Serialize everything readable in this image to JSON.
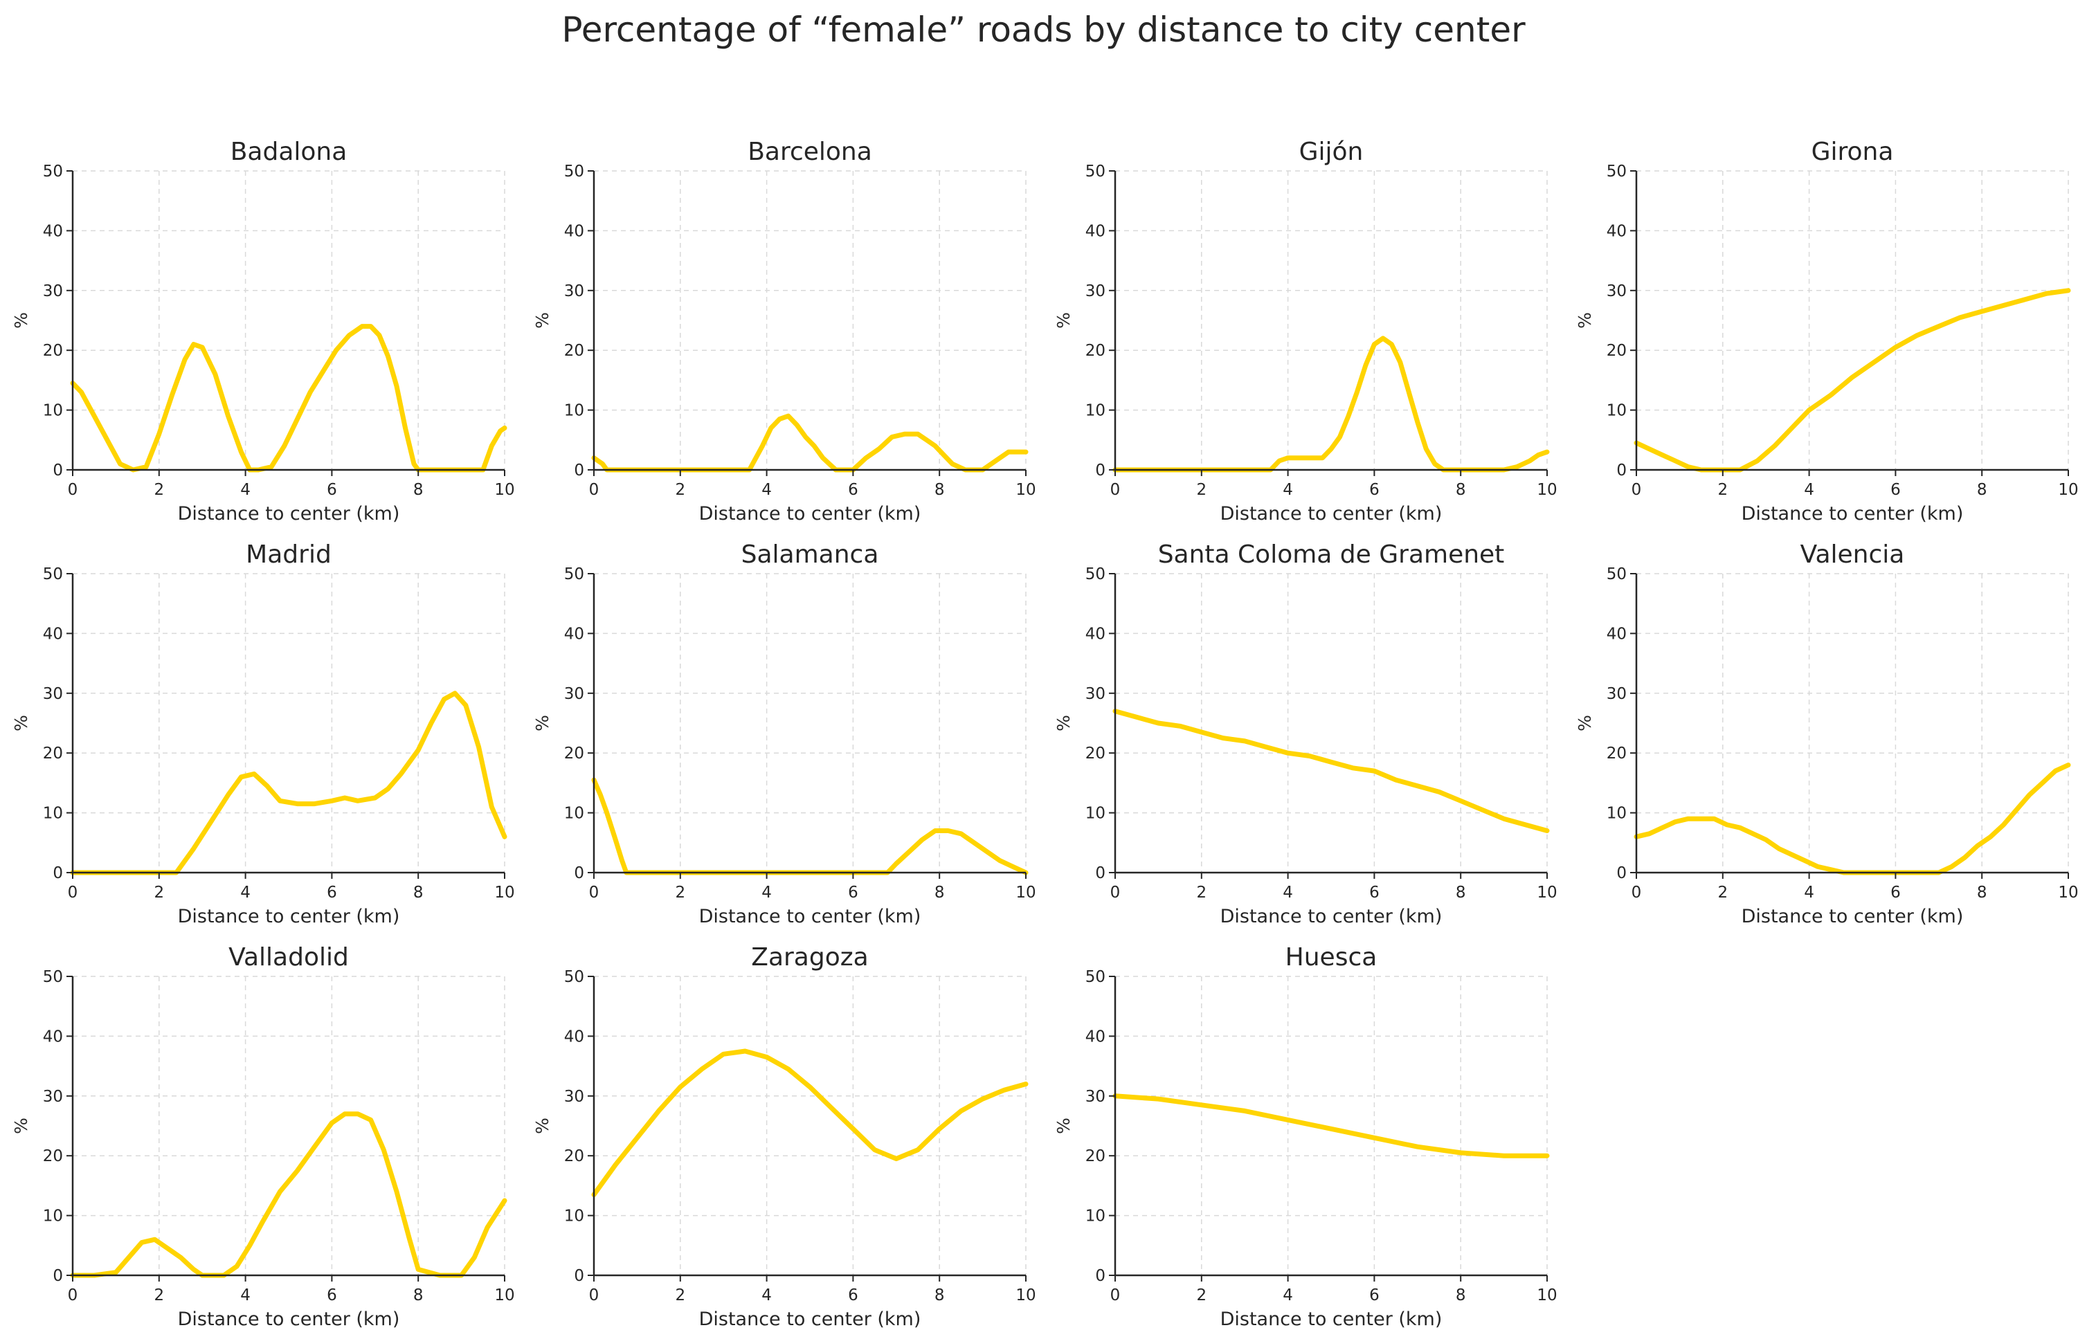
{
  "title": "Percentage of “female” roads by distance to city center",
  "colors": {
    "series": "#FFD400",
    "axis": "#262626",
    "grid": "#d9d9d9"
  },
  "chart_data": [
    {
      "type": "line",
      "title": "Badalona",
      "xlabel": "Distance to center (km)",
      "ylabel": "%",
      "xlim": [
        0,
        10
      ],
      "ylim": [
        0,
        50
      ],
      "xticks": [
        0,
        2,
        4,
        6,
        8,
        10
      ],
      "yticks": [
        0,
        10,
        20,
        30,
        40,
        50
      ],
      "grid": true,
      "x": [
        0,
        0.2,
        0.5,
        0.8,
        1.1,
        1.4,
        1.7,
        2.0,
        2.3,
        2.6,
        2.8,
        3.0,
        3.3,
        3.6,
        3.9,
        4.1,
        4.3,
        4.6,
        4.9,
        5.2,
        5.5,
        5.8,
        6.1,
        6.4,
        6.7,
        6.9,
        7.1,
        7.3,
        7.5,
        7.7,
        7.9,
        8.0,
        8.5,
        9.0,
        9.5,
        9.7,
        9.9,
        10
      ],
      "y": [
        14.5,
        13,
        9,
        5,
        1,
        0,
        0.5,
        6,
        12.5,
        18.5,
        21,
        20.5,
        16,
        9,
        3,
        0,
        0,
        0.5,
        4,
        8.5,
        13,
        16.5,
        20,
        22.5,
        24,
        24,
        22.5,
        19,
        14,
        7,
        1,
        0,
        0,
        0,
        0,
        4,
        6.5,
        7
      ]
    },
    {
      "type": "line",
      "title": "Barcelona",
      "xlabel": "Distance to center (km)",
      "ylabel": "%",
      "xlim": [
        0,
        10
      ],
      "ylim": [
        0,
        50
      ],
      "xticks": [
        0,
        2,
        4,
        6,
        8,
        10
      ],
      "yticks": [
        0,
        10,
        20,
        30,
        40,
        50
      ],
      "grid": true,
      "x": [
        0,
        0.2,
        0.3,
        1.0,
        2.0,
        3.0,
        3.6,
        3.9,
        4.1,
        4.3,
        4.5,
        4.7,
        4.9,
        5.1,
        5.3,
        5.6,
        5.8,
        6.0,
        6.3,
        6.6,
        6.9,
        7.2,
        7.5,
        7.7,
        7.9,
        8.1,
        8.3,
        8.6,
        9.0,
        9.3,
        9.6,
        10
      ],
      "y": [
        2,
        1,
        0,
        0,
        0,
        0,
        0,
        4,
        7,
        8.5,
        9,
        7.5,
        5.5,
        4,
        2,
        0,
        0,
        0,
        2,
        3.5,
        5.5,
        6,
        6,
        5,
        4,
        2.5,
        1,
        0,
        0,
        1.5,
        3,
        3
      ]
    },
    {
      "type": "line",
      "title": "Gijón",
      "xlabel": "Distance to center (km)",
      "ylabel": "%",
      "xlim": [
        0,
        10
      ],
      "ylim": [
        0,
        50
      ],
      "xticks": [
        0,
        2,
        4,
        6,
        8,
        10
      ],
      "yticks": [
        0,
        10,
        20,
        30,
        40,
        50
      ],
      "grid": true,
      "x": [
        0,
        1,
        2,
        3,
        3.6,
        3.8,
        4.0,
        4.5,
        4.8,
        5.0,
        5.2,
        5.4,
        5.6,
        5.8,
        6.0,
        6.2,
        6.4,
        6.6,
        6.8,
        7.0,
        7.2,
        7.4,
        7.6,
        7.8,
        8.5,
        9.0,
        9.3,
        9.6,
        9.8,
        10
      ],
      "y": [
        0,
        0,
        0,
        0,
        0,
        1.5,
        2,
        2,
        2,
        3.5,
        5.5,
        9,
        13,
        17.5,
        21,
        22,
        21,
        18,
        13,
        8,
        3.5,
        1,
        0,
        0,
        0,
        0,
        0.5,
        1.5,
        2.5,
        3
      ]
    },
    {
      "type": "line",
      "title": "Girona",
      "xlabel": "Distance to center (km)",
      "ylabel": "%",
      "xlim": [
        0,
        10
      ],
      "ylim": [
        0,
        50
      ],
      "xticks": [
        0,
        2,
        4,
        6,
        8,
        10
      ],
      "yticks": [
        0,
        10,
        20,
        30,
        40,
        50
      ],
      "grid": true,
      "x": [
        0,
        0.3,
        0.6,
        0.9,
        1.2,
        1.5,
        2.0,
        2.4,
        2.8,
        3.2,
        3.6,
        4.0,
        4.5,
        5.0,
        5.5,
        6.0,
        6.5,
        7.0,
        7.5,
        8.0,
        8.5,
        9.0,
        9.5,
        10
      ],
      "y": [
        4.5,
        3.5,
        2.5,
        1.5,
        0.5,
        0,
        0,
        0,
        1.5,
        4,
        7,
        10,
        12.5,
        15.5,
        18,
        20.5,
        22.5,
        24,
        25.5,
        26.5,
        27.5,
        28.5,
        29.5,
        30
      ]
    },
    {
      "type": "line",
      "title": "Madrid",
      "xlabel": "Distance to center (km)",
      "ylabel": "%",
      "xlim": [
        0,
        10
      ],
      "ylim": [
        0,
        50
      ],
      "xticks": [
        0,
        2,
        4,
        6,
        8,
        10
      ],
      "yticks": [
        0,
        10,
        20,
        30,
        40,
        50
      ],
      "grid": true,
      "x": [
        0,
        1,
        2,
        2.4,
        2.8,
        3.2,
        3.6,
        3.9,
        4.2,
        4.5,
        4.8,
        5.2,
        5.6,
        6.0,
        6.3,
        6.6,
        7.0,
        7.3,
        7.6,
        8.0,
        8.3,
        8.6,
        8.85,
        9.1,
        9.4,
        9.7,
        10
      ],
      "y": [
        0,
        0,
        0,
        0,
        4,
        8.5,
        13,
        16,
        16.5,
        14.5,
        12,
        11.5,
        11.5,
        12,
        12.5,
        12,
        12.5,
        14,
        16.5,
        20.5,
        25,
        29,
        30,
        28,
        21,
        11,
        6
      ]
    },
    {
      "type": "line",
      "title": "Salamanca",
      "xlabel": "Distance to center (km)",
      "ylabel": "%",
      "xlim": [
        0,
        10
      ],
      "ylim": [
        0,
        50
      ],
      "xticks": [
        0,
        2,
        4,
        6,
        8,
        10
      ],
      "yticks": [
        0,
        10,
        20,
        30,
        40,
        50
      ],
      "grid": true,
      "x": [
        0,
        0.15,
        0.3,
        0.5,
        0.65,
        0.75,
        1.0,
        2,
        3,
        4,
        5,
        6,
        6.8,
        7.0,
        7.3,
        7.6,
        7.9,
        8.2,
        8.5,
        8.8,
        9.1,
        9.4,
        9.7,
        10
      ],
      "y": [
        15.5,
        13,
        10,
        5.5,
        2,
        0,
        0,
        0,
        0,
        0,
        0,
        0,
        0,
        1.5,
        3.5,
        5.5,
        7,
        7,
        6.5,
        5,
        3.5,
        2,
        1,
        0
      ]
    },
    {
      "type": "line",
      "title": "Santa Coloma de Gramenet",
      "xlabel": "Distance to center (km)",
      "ylabel": "%",
      "xlim": [
        0,
        10
      ],
      "ylim": [
        0,
        50
      ],
      "xticks": [
        0,
        2,
        4,
        6,
        8,
        10
      ],
      "yticks": [
        0,
        10,
        20,
        30,
        40,
        50
      ],
      "grid": true,
      "x": [
        0,
        0.5,
        1,
        1.5,
        2,
        2.5,
        3,
        3.5,
        4,
        4.5,
        5,
        5.5,
        6,
        6.5,
        7,
        7.5,
        8,
        8.5,
        9,
        9.5,
        10
      ],
      "y": [
        27,
        26,
        25,
        24.5,
        23.5,
        22.5,
        22,
        21,
        20,
        19.5,
        18.5,
        17.5,
        17,
        15.5,
        14.5,
        13.5,
        12,
        10.5,
        9,
        8,
        7
      ]
    },
    {
      "type": "line",
      "title": "Valencia",
      "xlabel": "Distance to center (km)",
      "ylabel": "%",
      "xlim": [
        0,
        10
      ],
      "ylim": [
        0,
        50
      ],
      "xticks": [
        0,
        2,
        4,
        6,
        8,
        10
      ],
      "yticks": [
        0,
        10,
        20,
        30,
        40,
        50
      ],
      "grid": true,
      "x": [
        0,
        0.3,
        0.6,
        0.9,
        1.2,
        1.5,
        1.8,
        2.1,
        2.4,
        2.7,
        3.0,
        3.3,
        3.6,
        3.9,
        4.2,
        4.5,
        4.8,
        5.5,
        6.5,
        7.0,
        7.3,
        7.6,
        7.9,
        8.2,
        8.5,
        8.8,
        9.1,
        9.4,
        9.7,
        10
      ],
      "y": [
        6,
        6.5,
        7.5,
        8.5,
        9,
        9,
        9,
        8,
        7.5,
        6.5,
        5.5,
        4,
        3,
        2,
        1,
        0.5,
        0,
        0,
        0,
        0,
        1,
        2.5,
        4.5,
        6,
        8,
        10.5,
        13,
        15,
        17,
        18
      ]
    },
    {
      "type": "line",
      "title": "Valladolid",
      "xlabel": "Distance to center (km)",
      "ylabel": "%",
      "xlim": [
        0,
        10
      ],
      "ylim": [
        0,
        50
      ],
      "xticks": [
        0,
        2,
        4,
        6,
        8,
        10
      ],
      "yticks": [
        0,
        10,
        20,
        30,
        40,
        50
      ],
      "grid": true,
      "x": [
        0,
        0.5,
        1.0,
        1.3,
        1.6,
        1.9,
        2.2,
        2.5,
        2.8,
        3.0,
        3.5,
        3.8,
        4.1,
        4.4,
        4.8,
        5.2,
        5.6,
        6.0,
        6.3,
        6.6,
        6.9,
        7.2,
        7.5,
        7.8,
        8.0,
        8.5,
        9.0,
        9.3,
        9.6,
        10
      ],
      "y": [
        0,
        0,
        0.5,
        3,
        5.5,
        6,
        4.5,
        3,
        1,
        0,
        0,
        1.5,
        5,
        9,
        14,
        17.5,
        21.5,
        25.5,
        27,
        27,
        26,
        21,
        14,
        6,
        1,
        0,
        0,
        3,
        8,
        12.5
      ]
    },
    {
      "type": "line",
      "title": "Zaragoza",
      "xlabel": "Distance to center (km)",
      "ylabel": "%",
      "xlim": [
        0,
        10
      ],
      "ylim": [
        0,
        50
      ],
      "xticks": [
        0,
        2,
        4,
        6,
        8,
        10
      ],
      "yticks": [
        0,
        10,
        20,
        30,
        40,
        50
      ],
      "grid": true,
      "x": [
        0,
        0.5,
        1,
        1.5,
        2,
        2.5,
        3,
        3.5,
        4,
        4.5,
        5,
        5.5,
        6,
        6.5,
        7,
        7.5,
        8,
        8.5,
        9,
        9.5,
        10
      ],
      "y": [
        13.5,
        18.5,
        23,
        27.5,
        31.5,
        34.5,
        37,
        37.5,
        36.5,
        34.5,
        31.5,
        28,
        24.5,
        21,
        19.5,
        21,
        24.5,
        27.5,
        29.5,
        31,
        32
      ]
    },
    {
      "type": "line",
      "title": "Huesca",
      "xlabel": "Distance to center (km)",
      "ylabel": "%",
      "xlim": [
        0,
        10
      ],
      "ylim": [
        0,
        50
      ],
      "xticks": [
        0,
        2,
        4,
        6,
        8,
        10
      ],
      "yticks": [
        0,
        10,
        20,
        30,
        40,
        50
      ],
      "grid": true,
      "x": [
        0,
        1,
        2,
        3,
        4,
        5,
        6,
        7,
        8,
        9,
        10
      ],
      "y": [
        30,
        29.5,
        28.5,
        27.5,
        26,
        24.5,
        23,
        21.5,
        20.5,
        20,
        20
      ]
    }
  ]
}
